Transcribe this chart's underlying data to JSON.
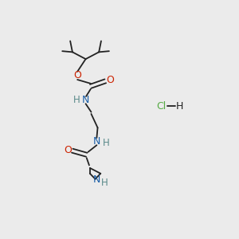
{
  "bg": "#ebebeb",
  "bond_color": "#222222",
  "N_color": "#1a5fa8",
  "O_color": "#cc2200",
  "Cl_color": "#55aa44",
  "H_color": "#5a8a8a",
  "figsize": [
    3.0,
    3.0
  ],
  "dpi": 100,
  "xlim": [
    0,
    10
  ],
  "ylim": [
    0,
    10
  ]
}
